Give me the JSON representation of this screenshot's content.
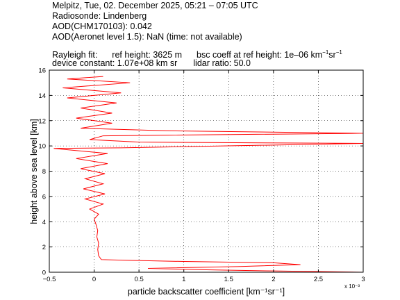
{
  "header": {
    "line1": "Melpitz, Tue, 02. December 2025, 05:21 – 07:05 UTC",
    "line2": "Radiosonde: Lindenberg",
    "line3": "AOD(CHM170103): 0.042",
    "line4": "AOD(Aeronet level 1.5): NaN   (time: not available)",
    "rayleigh_label": "Rayleigh fit:",
    "ref_height": "ref height: 3625 m",
    "bsc_coeff_text": "bsc coeff at ref height: 1e–06 km",
    "bsc_unit_exp1": "−1",
    "bsc_unit_mid": "sr",
    "bsc_unit_exp2": "−1",
    "device_constant": "device constant: 1.07e+08 km sr",
    "lidar_ratio": "lidar ratio: 50.0"
  },
  "chart_data": {
    "type": "line",
    "xlabel": "particle backscatter coefficient [km⁻¹sr⁻¹]",
    "ylabel": "height above sea level [km]",
    "x_multiplier_label": "x 10⁻³",
    "xlim": [
      -0.5,
      3.0
    ],
    "ylim": [
      0,
      16
    ],
    "xticks": [
      -0.5,
      0,
      0.5,
      1,
      1.5,
      2,
      2.5,
      3
    ],
    "xtick_labels": [
      "−0.5",
      "0",
      "0.5",
      "1",
      "1.5",
      "2",
      "2.5",
      "3"
    ],
    "yticks": [
      0,
      2,
      4,
      6,
      8,
      10,
      12,
      14,
      16
    ],
    "ytick_labels": [
      "0",
      "2",
      "4",
      "6",
      "8",
      "10",
      "12",
      "14",
      "16"
    ],
    "grid": true,
    "line_color": "#ff0000",
    "series": [
      {
        "x_scale": "1e-3",
        "points": [
          [
            3.0,
            0.0
          ],
          [
            2.0,
            0.1
          ],
          [
            1.2,
            0.2
          ],
          [
            0.6,
            0.3
          ],
          [
            1.6,
            0.45
          ],
          [
            2.3,
            0.6
          ],
          [
            2.0,
            0.75
          ],
          [
            1.0,
            0.85
          ],
          [
            0.35,
            0.95
          ],
          [
            0.08,
            1.0
          ],
          [
            0.05,
            1.3
          ],
          [
            0.04,
            1.8
          ],
          [
            0.05,
            2.3
          ],
          [
            0.03,
            2.8
          ],
          [
            0.04,
            3.3
          ],
          [
            0.02,
            3.8
          ],
          [
            0.0,
            4.2
          ],
          [
            0.05,
            4.6
          ],
          [
            -0.05,
            5.0
          ],
          [
            0.1,
            5.4
          ],
          [
            -0.1,
            5.8
          ],
          [
            0.12,
            6.2
          ],
          [
            -0.12,
            6.6
          ],
          [
            0.1,
            7.0
          ],
          [
            -0.1,
            7.4
          ],
          [
            0.12,
            7.8
          ],
          [
            -0.15,
            8.2
          ],
          [
            0.15,
            8.6
          ],
          [
            -0.2,
            9.0
          ],
          [
            0.15,
            9.4
          ],
          [
            -0.45,
            9.8
          ],
          [
            0.3,
            9.85
          ],
          [
            3.0,
            10.2
          ],
          [
            0.5,
            10.3
          ],
          [
            -0.05,
            10.5
          ],
          [
            0.1,
            10.8
          ],
          [
            3.0,
            11.0
          ],
          [
            0.8,
            11.2
          ],
          [
            -0.15,
            11.4
          ],
          [
            0.2,
            11.8
          ],
          [
            -0.2,
            12.2
          ],
          [
            0.2,
            12.6
          ],
          [
            -0.15,
            13.0
          ],
          [
            0.25,
            13.4
          ],
          [
            -0.3,
            13.8
          ],
          [
            0.3,
            14.2
          ],
          [
            -0.35,
            14.6
          ],
          [
            0.4,
            15.0
          ],
          [
            -0.3,
            15.3
          ],
          [
            0.1,
            15.5
          ]
        ]
      }
    ]
  }
}
